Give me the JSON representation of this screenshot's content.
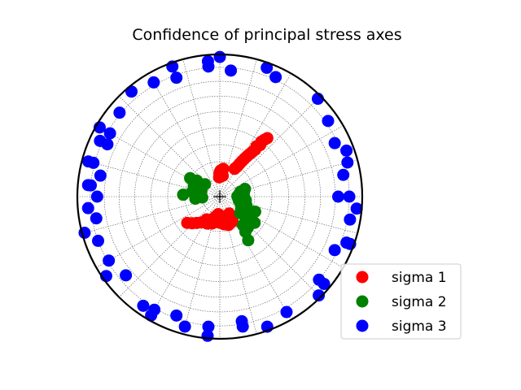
{
  "chart_data": {
    "type": "scatter",
    "projection": "stereonet",
    "title": "Confidence of principal stress axes",
    "grid": true,
    "legend_placement": "lower-right",
    "series": [
      {
        "name": "sigma 1",
        "color": "#ff0000",
        "points": [
          [
            -2,
            79
          ],
          [
            -1,
            77
          ],
          [
            0,
            76
          ],
          [
            1,
            78
          ],
          [
            2,
            75
          ],
          [
            4,
            78
          ],
          [
            5,
            75
          ],
          [
            6,
            77
          ],
          [
            7,
            74
          ],
          [
            8,
            78
          ],
          [
            28,
            72
          ],
          [
            30,
            70
          ],
          [
            31,
            68
          ],
          [
            32,
            66
          ],
          [
            33,
            64
          ],
          [
            34,
            62
          ],
          [
            35,
            60
          ],
          [
            36,
            58
          ],
          [
            37,
            56
          ],
          [
            36,
            54
          ],
          [
            38,
            52
          ],
          [
            37,
            50
          ],
          [
            38,
            48
          ],
          [
            39,
            46
          ],
          [
            149,
            76
          ],
          [
            151,
            79
          ],
          [
            153,
            74
          ],
          [
            155,
            77
          ],
          [
            157,
            75
          ],
          [
            159,
            78
          ],
          [
            161,
            76
          ],
          [
            163,
            73
          ],
          [
            165,
            77
          ],
          [
            167,
            75
          ],
          [
            169,
            78
          ],
          [
            171,
            74
          ],
          [
            173,
            77
          ],
          [
            175,
            76
          ],
          [
            177,
            79
          ],
          [
            179,
            75
          ],
          [
            181,
            77
          ],
          [
            183,
            78
          ],
          [
            185,
            80
          ],
          [
            187,
            76
          ],
          [
            189,
            79
          ],
          [
            191,
            75
          ],
          [
            193,
            78
          ],
          [
            196,
            74
          ],
          [
            200,
            76
          ],
          [
            205,
            73
          ],
          [
            210,
            75
          ],
          [
            215,
            72
          ],
          [
            221,
            70
          ],
          [
            226,
            68
          ],
          [
            231,
            66
          ]
        ]
      },
      {
        "name": "sigma 2",
        "color": "#008000",
        "points": [
          [
            73,
            75
          ],
          [
            77,
            78
          ],
          [
            80,
            76
          ],
          [
            83,
            79
          ],
          [
            86,
            77
          ],
          [
            89,
            80
          ],
          [
            92,
            76
          ],
          [
            95,
            78
          ],
          [
            98,
            75
          ],
          [
            101,
            79
          ],
          [
            108,
            74
          ],
          [
            111,
            77
          ],
          [
            114,
            75
          ],
          [
            117,
            73
          ],
          [
            120,
            76
          ],
          [
            123,
            74
          ],
          [
            126,
            72
          ],
          [
            129,
            75
          ],
          [
            132,
            70
          ],
          [
            135,
            68
          ],
          [
            138,
            66
          ],
          [
            141,
            69
          ],
          [
            144,
            65
          ],
          [
            147,
            60
          ],
          [
            113,
            68
          ],
          [
            119,
            70
          ],
          [
            124,
            69
          ],
          [
            130,
            67
          ],
          [
            116,
            71
          ],
          [
            127,
            65
          ],
          [
            277,
            78
          ],
          [
            280,
            74
          ],
          [
            283,
            77
          ],
          [
            286,
            75
          ],
          [
            289,
            79
          ],
          [
            292,
            74
          ],
          [
            295,
            78
          ],
          [
            298,
            75
          ],
          [
            302,
            77
          ],
          [
            305,
            74
          ],
          [
            310,
            79
          ],
          [
            265,
            76
          ],
          [
            273,
            69
          ],
          [
            302,
            70
          ],
          [
            270,
            79
          ],
          [
            267,
            80
          ]
        ]
      },
      {
        "name": "sigma 3",
        "color": "#0000ff",
        "points": [
          [
            0,
            2
          ],
          [
            20,
            4
          ],
          [
            45,
            3
          ],
          [
            70,
            6
          ],
          [
            95,
            4
          ],
          [
            110,
            3
          ],
          [
            135,
            2
          ],
          [
            160,
            3
          ],
          [
            185,
            2
          ],
          [
            210,
            4
          ],
          [
            235,
            3
          ],
          [
            255,
            2
          ],
          [
            285,
            5
          ],
          [
            300,
            3
          ],
          [
            320,
            4
          ],
          [
            340,
            3
          ],
          [
            355,
            5
          ],
          [
            90,
            10
          ],
          [
            80,
            13
          ],
          [
            100,
            8
          ],
          [
            110,
            6
          ],
          [
            75,
            8
          ],
          [
            275,
            10
          ],
          [
            285,
            9
          ],
          [
            295,
            8
          ],
          [
            265,
            8
          ],
          [
            310,
            9
          ],
          [
            330,
            8
          ],
          [
            250,
            10
          ],
          [
            215,
            7
          ],
          [
            195,
            6
          ],
          [
            170,
            8
          ],
          [
            150,
            7
          ],
          [
            130,
            5
          ],
          [
            55,
            8
          ],
          [
            25,
            8
          ],
          [
            355,
            9
          ],
          [
            5,
            12
          ],
          [
            340,
            12
          ],
          [
            280,
            16
          ],
          [
            270,
            15
          ],
          [
            295,
            14
          ],
          [
            260,
            13
          ],
          [
            240,
            11
          ],
          [
            200,
            12
          ],
          [
            230,
            15
          ],
          [
            210,
            9
          ],
          [
            300,
            12
          ],
          [
            170,
            12
          ],
          [
            90,
            18
          ],
          [
            130,
            10
          ],
          [
            115,
            12
          ],
          [
            65,
            12
          ],
          [
            275,
            8
          ],
          [
            185,
            9
          ]
        ]
      }
    ]
  }
}
